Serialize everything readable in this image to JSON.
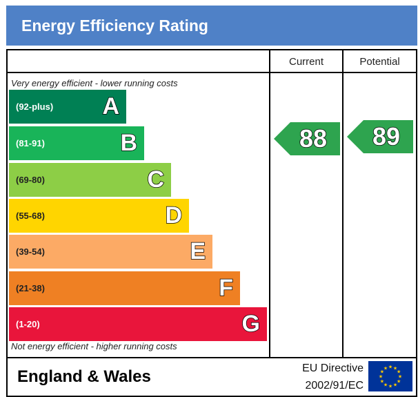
{
  "header": {
    "title": "Energy Efficiency Rating"
  },
  "columns": {
    "current": "Current",
    "potential": "Potential"
  },
  "captions": {
    "top": "Very energy efficient - lower running costs",
    "bottom": "Not energy efficient - higher running costs"
  },
  "bands": [
    {
      "range": "(92-plus)",
      "letter": "A",
      "color": "#008054"
    },
    {
      "range": "(81-91)",
      "letter": "B",
      "color": "#19b459"
    },
    {
      "range": "(69-80)",
      "letter": "C",
      "color": "#8dce46"
    },
    {
      "range": "(55-68)",
      "letter": "D",
      "color": "#ffd500"
    },
    {
      "range": "(39-54)",
      "letter": "E",
      "color": "#fcaa65"
    },
    {
      "range": "(21-38)",
      "letter": "F",
      "color": "#ef8023"
    },
    {
      "range": "(1-20)",
      "letter": "G",
      "color": "#e9153b"
    }
  ],
  "ratings": {
    "current": {
      "value": "88",
      "color": "#2ea44f"
    },
    "potential": {
      "value": "89",
      "color": "#2ea44f"
    }
  },
  "footer": {
    "region": "England & Wales",
    "directive_line1": "EU Directive",
    "directive_line2": "2002/91/EC",
    "flag": "eu-flag-icon"
  }
}
